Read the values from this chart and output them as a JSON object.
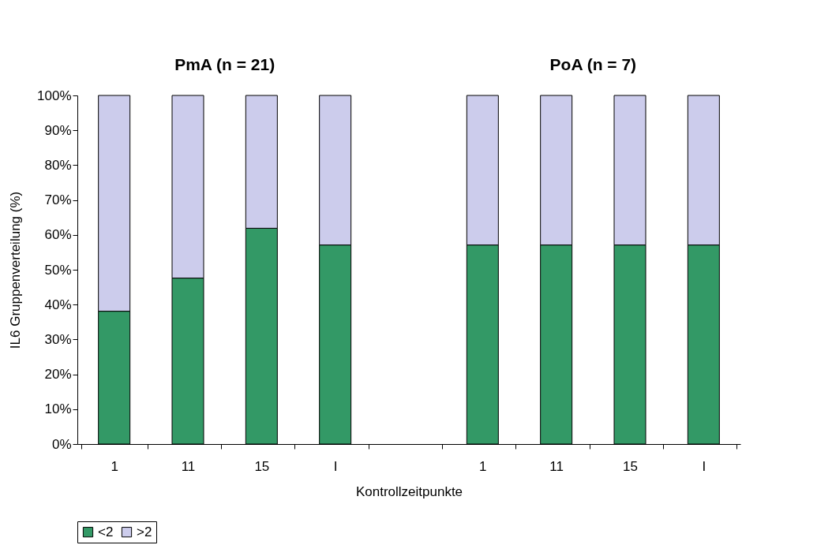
{
  "chart_data": {
    "type": "bar",
    "stacked": true,
    "xlabel": "Kontrollzeitpunkte",
    "ylabel": "IL6 Gruppenverteilung (%)",
    "annotations": [
      "PmA (n = 21)",
      "PoA (n = 7)"
    ],
    "categories": [
      "1",
      "11",
      "15",
      "I",
      null,
      "1",
      "11",
      "15",
      "I"
    ],
    "series": [
      {
        "name": "<2",
        "color": "#339966",
        "values": [
          38.1,
          47.6,
          61.9,
          57.1,
          null,
          57.1,
          57.1,
          57.1,
          57.1
        ]
      },
      {
        "name": ">2",
        "color": "#ccccec",
        "values": [
          61.9,
          52.4,
          38.1,
          42.9,
          null,
          42.9,
          42.9,
          42.9,
          42.9
        ]
      }
    ],
    "ylim": [
      0,
      100
    ],
    "yticks": [
      {
        "value": 0,
        "label": "0%"
      },
      {
        "value": 10,
        "label": "10%"
      },
      {
        "value": 20,
        "label": "20%"
      },
      {
        "value": 30,
        "label": "30%"
      },
      {
        "value": 40,
        "label": "40%"
      },
      {
        "value": 50,
        "label": "50%"
      },
      {
        "value": 60,
        "label": "60%"
      },
      {
        "value": 70,
        "label": "70%"
      },
      {
        "value": 80,
        "label": "80%"
      },
      {
        "value": 90,
        "label": "90%"
      },
      {
        "value": 100,
        "label": "100%"
      }
    ],
    "grid": false,
    "legend": "bottom"
  }
}
